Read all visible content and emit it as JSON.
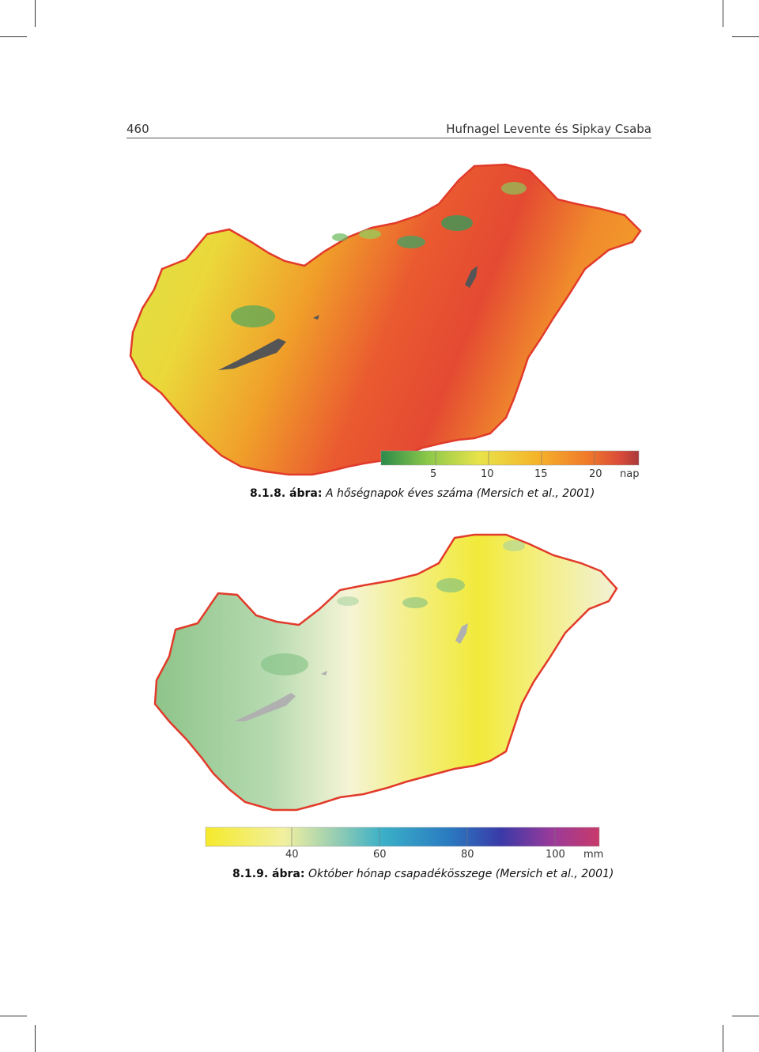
{
  "header": {
    "page_number": "460",
    "running_title": "Hufnagel Levente és Sipkay Csaba"
  },
  "figure1": {
    "number": "8.1.8. ábra:",
    "caption": "A hőségnapok éves száma (Mersich et al., 2001)",
    "legend": {
      "ticks": [
        "5",
        "10",
        "15",
        "20"
      ],
      "unit": "nap",
      "colors": [
        "#2a8a4a",
        "#8cc84a",
        "#e8e34a",
        "#f5b52a",
        "#f07a2a",
        "#d94a3a",
        "#a83a3a"
      ]
    }
  },
  "figure2": {
    "number": "8.1.9. ábra:",
    "caption": "Október hónap csapadékösszege (Mersich et al., 2001)",
    "legend": {
      "ticks": [
        "40",
        "60",
        "80",
        "100"
      ],
      "unit": "mm",
      "colors": [
        "#f5ea2a",
        "#f2f0a0",
        "#9fd0b0",
        "#3ab0c8",
        "#2a7ac0",
        "#3a3aa8",
        "#9a3a9a",
        "#c83a6a"
      ]
    }
  }
}
